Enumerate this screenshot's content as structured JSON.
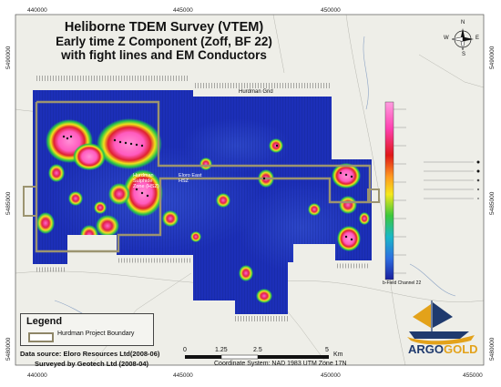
{
  "title": {
    "line1": "Heliborne TDEM Survey (VTEM)",
    "line2": "Early time Z Component (Zoff, BF 22)",
    "line3": "with fight lines and EM Conductors"
  },
  "coords": {
    "x_top": [
      "440000",
      "445000",
      "450000"
    ],
    "x_bottom": [
      "440000",
      "445000",
      "450000",
      "455000"
    ],
    "y_left": [
      "5490000",
      "5485000",
      "5480000"
    ],
    "y_right": [
      "5490000",
      "5485000",
      "5480000"
    ]
  },
  "labels": {
    "hurdman_grid": "Hurdman Grid",
    "hurdman_zone": "Hurdman Sulphide Zone (HSZ)",
    "eloro_zone": "Eloro East HSZ",
    "colorbar_title": "b-Field Channel 22"
  },
  "legend": {
    "title": "Legend",
    "item": "Hurdman Project Boundary"
  },
  "source": {
    "line1": "Data source: Eloro Resources Ltd(2008-06)",
    "line2": "Surveyed by Geotech Ltd (2008-04)"
  },
  "scale": {
    "ticks": [
      "0",
      "1.25",
      "2.5",
      "5"
    ],
    "unit": "Km",
    "coord_system": "Coordinate System: NAD 1983 UTM Zone 17N"
  },
  "compass": {
    "n": "N",
    "s": "S",
    "e": "E",
    "w": "W"
  },
  "logo": {
    "part1": "ARGO",
    "part2": "GOLD"
  },
  "colors": {
    "background_low": "#1c2fb8",
    "anomaly_high": "#ff66cc",
    "boundary": "#9c9470",
    "logo_navy": "#1f3a6e",
    "logo_gold": "#e3a21a"
  }
}
